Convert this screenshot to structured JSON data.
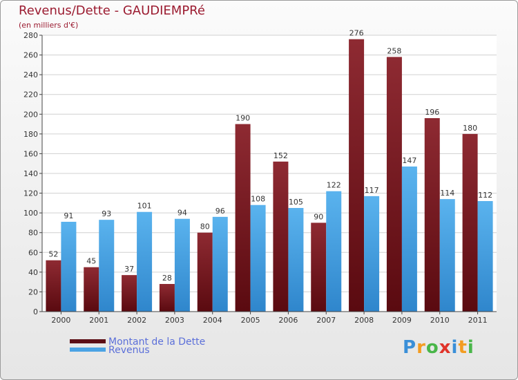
{
  "header": {
    "title": "Revenus/Dette - GAUDIEMPRé",
    "subtitle": "(en milliers d'€)"
  },
  "chart_data": {
    "type": "bar",
    "title": "Revenus/Dette - GAUDIEMPRé",
    "subtitle": "(en milliers d'€)",
    "categories": [
      "2000",
      "2001",
      "2002",
      "2003",
      "2004",
      "2005",
      "2006",
      "2007",
      "2008",
      "2009",
      "2010",
      "2011"
    ],
    "series": [
      {
        "name": "Montant de la Dette",
        "color": "#7a1a22",
        "values": [
          52,
          45,
          37,
          28,
          80,
          190,
          152,
          90,
          276,
          258,
          196,
          180
        ]
      },
      {
        "name": "Revenus",
        "color": "#4ba3e4",
        "values": [
          91,
          93,
          101,
          94,
          96,
          108,
          105,
          122,
          117,
          147,
          114,
          112
        ]
      }
    ],
    "ylim": [
      0,
      280
    ],
    "yticks": [
      0,
      20,
      40,
      60,
      80,
      100,
      120,
      140,
      160,
      180,
      200,
      220,
      240,
      260,
      280
    ],
    "grid": true,
    "legend": "bottom-left"
  },
  "legend": {
    "items": [
      {
        "label": "Montant de la Dette",
        "color": "#5c0e15"
      },
      {
        "label": "Revenus",
        "color": "#4ba3e4"
      }
    ]
  },
  "logo": {
    "letters": [
      "P",
      "r",
      "o",
      "x",
      "i",
      "t",
      "i"
    ],
    "colors": [
      "#3a8fd8",
      "#f39c21",
      "#49b649",
      "#e0342a",
      "#3a8fd8",
      "#f39c21",
      "#49b649"
    ]
  }
}
